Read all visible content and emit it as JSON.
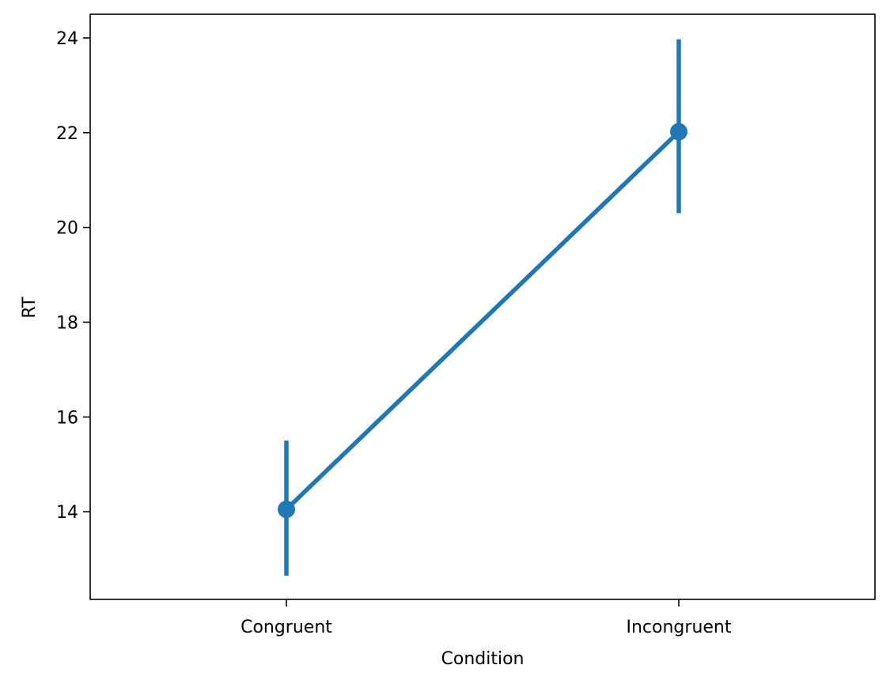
{
  "chart_data": {
    "type": "line",
    "xlabel": "Condition",
    "ylabel": "RT",
    "categories": [
      "Congruent",
      "Incongruent"
    ],
    "series": [
      {
        "values": [
          14.05,
          22.02
        ],
        "ci_low": [
          12.65,
          20.3
        ],
        "ci_high": [
          15.5,
          23.97
        ],
        "color": "#1f77b4"
      }
    ],
    "ylim": [
      12.15,
      24.5
    ],
    "yticks": [
      14,
      16,
      18,
      20,
      22,
      24
    ],
    "grid": false,
    "markers": true
  }
}
